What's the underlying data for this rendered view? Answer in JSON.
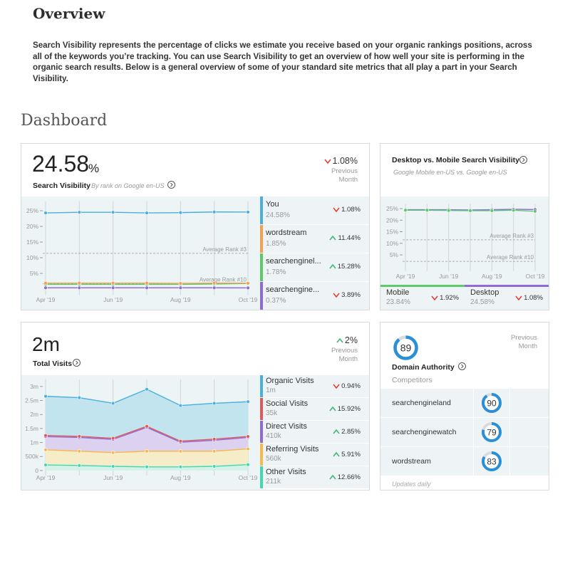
{
  "header": {
    "title": "Overview",
    "description": "Search Visibility represents the percentage of clicks we estimate you receive based on your organic rankings positions, across all of the keywords you’re tracking. You can use Search Visibility to get an overview of how well your site is performing in the organic search results. Below is a general overview of some of your standard site metrics that all play a part in your Search Visibility."
  },
  "dashboard": {
    "title": "Dashboard",
    "search_visibility": {
      "value": "24.58",
      "unit": "%",
      "label": "Search Visibility",
      "sublabel": "By rank on Google en-US",
      "change": "1.08%",
      "change_direction": "down",
      "change_period": "Previous Month",
      "chart": {
        "type": "line",
        "categories": [
          "Apr '19",
          null,
          "Jun '19",
          null,
          "Aug '19",
          null,
          "Oct '19"
        ],
        "ylim": [
          -2,
          28
        ],
        "yticks": [
          {
            "value": 5,
            "label": "5%"
          },
          {
            "value": 10,
            "label": "10%"
          },
          {
            "value": 15,
            "label": "15%"
          },
          {
            "value": 20,
            "label": "20%"
          },
          {
            "value": 25,
            "label": "25%"
          }
        ],
        "reference_lines": [
          {
            "label": "Average Rank #3",
            "value": 11.4
          },
          {
            "label": "Average Rank #10",
            "value": 1.7
          }
        ],
        "series": [
          {
            "name": "You",
            "color": "#4aaee0",
            "values": [
              24.3,
              24.5,
              24.5,
              24.3,
              24.4,
              24.6,
              24.58
            ],
            "value_label": "24.58%",
            "change": "1.08%",
            "change_direction": "down"
          },
          {
            "name": "wordstream",
            "color": "#f6a04d",
            "values": [
              1.9,
              1.9,
              1.9,
              1.9,
              1.8,
              1.9,
              1.85
            ],
            "value_label": "1.85%",
            "change": "11.44%",
            "change_direction": "up"
          },
          {
            "name": "searchenginel...",
            "color": "#5cc96b",
            "values": [
              1.5,
              1.5,
              1.5,
              1.5,
              1.5,
              1.6,
              1.78
            ],
            "value_label": "1.78%",
            "change": "15.28%",
            "change_direction": "up"
          },
          {
            "name": "searchengine...",
            "color": "#8f6ad8",
            "values": [
              0.4,
              0.4,
              0.4,
              0.4,
              0.4,
              0.4,
              0.37
            ],
            "value_label": "0.37%",
            "change": "3.89%",
            "change_direction": "down"
          }
        ]
      }
    },
    "desktop_mobile": {
      "title": "Desktop vs. Mobile Search Visibility",
      "subtitle": "Google Mobile en-US vs. Google en-US",
      "chart": {
        "type": "line",
        "categories": [
          "Apr '19",
          null,
          "Jun '19",
          null,
          "Aug '19",
          null,
          "Oct '19"
        ],
        "ylim": [
          -2,
          27
        ],
        "yticks": [
          {
            "value": 5,
            "label": "5%"
          },
          {
            "value": 10,
            "label": "10%"
          },
          {
            "value": 15,
            "label": "15%"
          },
          {
            "value": 20,
            "label": "20%"
          },
          {
            "value": 25,
            "label": "25%"
          }
        ],
        "reference_lines": [
          {
            "label": "Average Rank #3",
            "value": 11.5
          },
          {
            "label": "Average Rank #10",
            "value": 2.2
          }
        ],
        "series": [
          {
            "name": "Mobile",
            "color": "#5cc96b",
            "values": [
              24.3,
              24.3,
              24.2,
              24.1,
              24.1,
              24.3,
              23.84
            ],
            "value_label": "23.84%",
            "change": "1.92%",
            "change_direction": "down"
          },
          {
            "name": "Desktop",
            "color": "#8f6ad8",
            "values": [
              24.5,
              24.5,
              24.5,
              24.4,
              24.5,
              24.7,
              24.58
            ],
            "value_label": "24.58%",
            "change": "1.08%",
            "change_direction": "down"
          }
        ]
      }
    },
    "total_visits": {
      "value": "2m",
      "label": "Total Visits",
      "change": "2%",
      "change_direction": "up",
      "change_period": "Previous Month",
      "chart": {
        "type": "stacked_area",
        "categories": [
          "Apr '19",
          null,
          "Jun '19",
          null,
          "Aug '19",
          null,
          "Oct '19"
        ],
        "ylim": [
          -180000,
          3250000
        ],
        "yticks": [
          0,
          {
            "value": 500000,
            "label": "500k"
          },
          {
            "value": 1000000,
            "label": "1m"
          },
          {
            "value": 1500000,
            "label": "1.5m"
          },
          {
            "value": 2000000,
            "label": "2m"
          },
          {
            "value": 2500000,
            "label": "2.5m"
          },
          {
            "value": 3000000,
            "label": "3m"
          }
        ],
        "series": [
          {
            "name": "Organic Visits",
            "color": "#4aaee0",
            "fill": "#c2e4ee",
            "values": [
              1400000,
              1380000,
              1250000,
              1320000,
              1270000,
              1280000,
              1240000
            ],
            "value_label": "1m",
            "change": "0.94%",
            "change_direction": "down"
          },
          {
            "name": "Social Visits",
            "color": "#e05a5a",
            "fill": "#e9c3cf",
            "values": [
              40000,
              40000,
              40000,
              40000,
              40000,
              40000,
              35000
            ],
            "value_label": "35k",
            "change": "15.92%",
            "change_direction": "up"
          },
          {
            "name": "Direct Visits",
            "color": "#8f6ad8",
            "fill": "#dcd2ef",
            "values": [
              470000,
              490000,
              470000,
              850000,
              320000,
              390000,
              410000
            ],
            "value_label": "410k",
            "change": "2.85%",
            "change_direction": "up"
          },
          {
            "name": "Referring Visits",
            "color": "#f6b94d",
            "fill": "#f7ecc8",
            "values": [
              540000,
              510000,
              490000,
              560000,
              560000,
              540000,
              560000
            ],
            "value_label": "560k",
            "change": "5.91%",
            "change_direction": "up"
          },
          {
            "name": "Other Visits",
            "color": "#3fd8b0",
            "fill": "#d4f1e8",
            "values": [
              200000,
              180000,
              150000,
              130000,
              130000,
              150000,
              211000
            ],
            "value_label": "211k",
            "change": "12.66%",
            "change_direction": "up"
          }
        ]
      }
    },
    "domain_authority": {
      "change_period": "Previous Month",
      "value": 89,
      "max": 100,
      "label": "Domain Authority",
      "competitors_label": "Competitors",
      "competitors": [
        {
          "name": "searchengineland",
          "value": 90
        },
        {
          "name": "searchenginewatch",
          "value": 79
        },
        {
          "name": "wordstream",
          "value": 83
        }
      ],
      "footnote": "Updates daily"
    }
  }
}
